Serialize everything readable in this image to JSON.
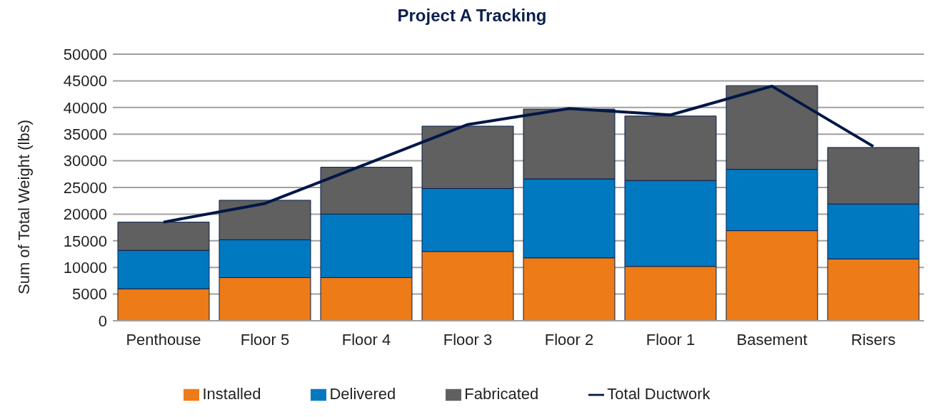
{
  "chart_data": {
    "type": "bar",
    "title": "Project A Tracking",
    "ylabel": "Sum of Total Weight (lbs)",
    "categories": [
      "Penthouse",
      "Floor 5",
      "Floor 4",
      "Floor 3",
      "Floor 2",
      "Floor 1",
      "Basement",
      "Risers"
    ],
    "stacked": true,
    "series": [
      {
        "name": "Installed",
        "color": "#ed7b17",
        "values": [
          6000,
          8100,
          8100,
          13000,
          11800,
          10200,
          16900,
          11600
        ]
      },
      {
        "name": "Delivered",
        "color": "#0079c1",
        "values": [
          7200,
          7100,
          11900,
          11800,
          14800,
          16100,
          11500,
          10300
        ]
      },
      {
        "name": "Fabricated",
        "color": "#5f605f",
        "values": [
          5300,
          7400,
          8800,
          11700,
          13100,
          12100,
          15700,
          10600
        ]
      },
      {
        "name": "Total Ductwork",
        "type": "line",
        "color": "#001746",
        "values": [
          18500,
          22000,
          29400,
          36800,
          39800,
          38600,
          44000,
          32700
        ]
      }
    ],
    "ylim": [
      0,
      50000
    ],
    "yticks": [
      0,
      5000,
      10000,
      15000,
      20000,
      25000,
      30000,
      35000,
      40000,
      45000,
      50000
    ],
    "grid": "y",
    "legend": "bottom",
    "marker": "none"
  }
}
